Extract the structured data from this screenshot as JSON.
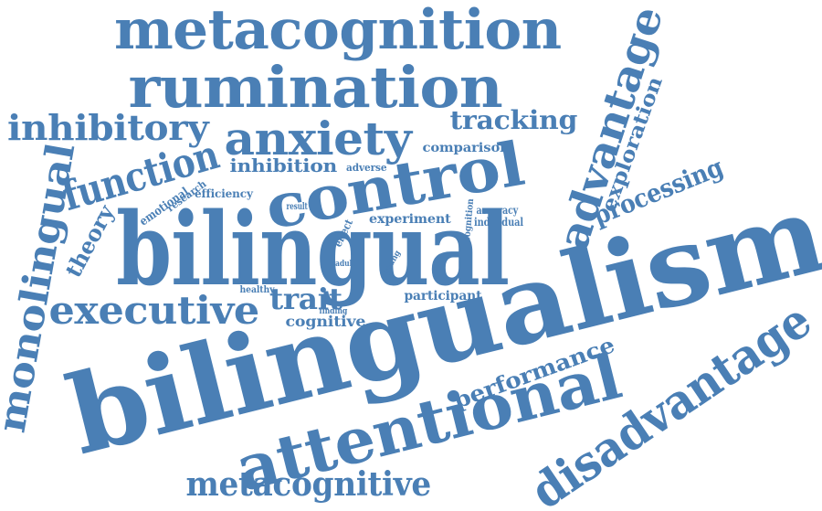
{
  "style": {
    "word_color": "#4a7fb5",
    "background": "#ffffff"
  },
  "words": [
    "metacognition",
    "rumination",
    "inhibitory",
    "tracking",
    "anxiety",
    "advantage",
    "exploration",
    "comparison",
    "function",
    "inhibition",
    "adverse",
    "control",
    "processing",
    "monolingual",
    "emotional",
    "research",
    "efficiency",
    "theory",
    "result",
    "experiment",
    "cognition",
    "accuracy",
    "individual",
    "effect",
    "bilingual",
    "adult",
    "young",
    "healthy",
    "finding",
    "participant",
    "trait",
    "executive",
    "cognitive",
    "bilingualism",
    "performance",
    "disadvantage",
    "attentional",
    "metacognitive"
  ]
}
